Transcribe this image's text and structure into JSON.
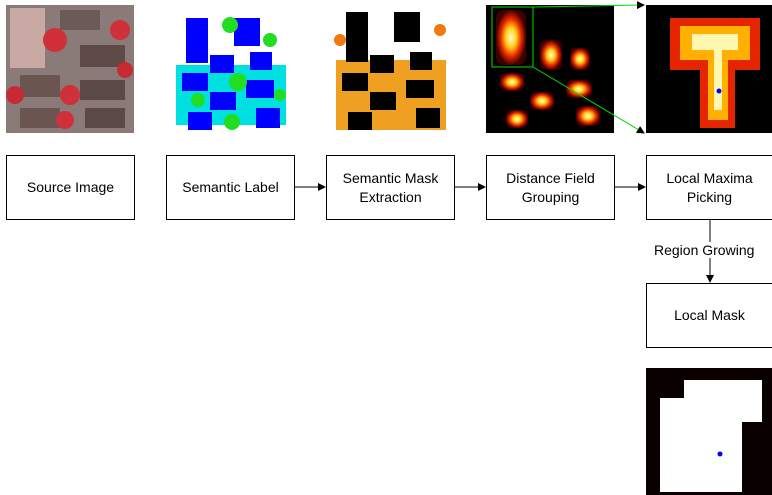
{
  "nodes": [
    {
      "label": "Source Image"
    },
    {
      "label": "Semantic Label"
    },
    {
      "label": "Semantic Mask Extraction"
    },
    {
      "label": "Distance Field Grouping"
    },
    {
      "label": "Local Maxima Picking"
    },
    {
      "label": "Local Mask"
    }
  ],
  "edges": [
    {
      "label": "Region Growing"
    }
  ]
}
